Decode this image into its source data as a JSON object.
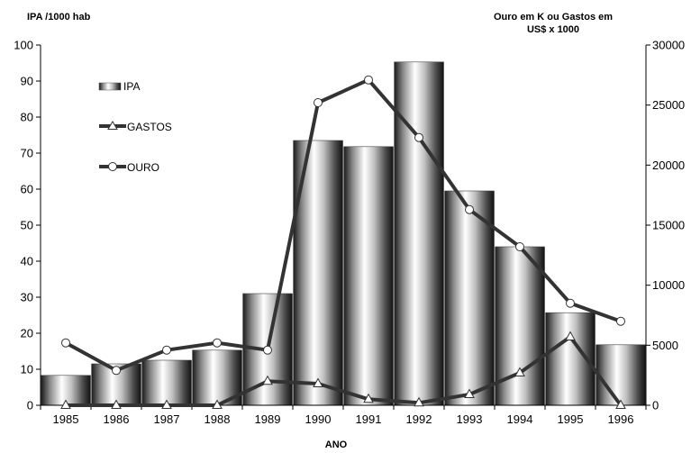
{
  "chart_data": {
    "type": "bar",
    "categories": [
      "1985",
      "1986",
      "1987",
      "1988",
      "1989",
      "1990",
      "1991",
      "1992",
      "1993",
      "1994",
      "1995",
      "1996"
    ],
    "xlabel": "ANO",
    "ylabel_left": "IPA /1000 hab",
    "ylabel_right": [
      "Ouro em K ou Gastos em",
      "US$ x 1000"
    ],
    "ylim_left": [
      0,
      100
    ],
    "ylim_right": [
      0,
      30000
    ],
    "yticks_left": [
      0,
      10,
      20,
      30,
      40,
      50,
      60,
      70,
      80,
      90,
      100
    ],
    "yticks_right": [
      0,
      5000,
      10000,
      15000,
      20000,
      25000,
      30000
    ],
    "grid": false,
    "legend_position": "top-left",
    "series": [
      {
        "name": "IPA",
        "type": "bar",
        "axis": "left",
        "values": [
          8.3,
          11.5,
          12.5,
          15.3,
          31,
          73.5,
          71.8,
          95.3,
          59.5,
          44,
          25.7,
          16.8
        ]
      },
      {
        "name": "GASTOS",
        "type": "line",
        "axis": "right",
        "marker": "triangle",
        "values": [
          0,
          0,
          0,
          0,
          2000,
          1800,
          500,
          200,
          900,
          2700,
          5700,
          0
        ]
      },
      {
        "name": "OURO",
        "type": "line",
        "axis": "right",
        "marker": "circle",
        "values": [
          5200,
          2900,
          4600,
          5200,
          4600,
          25200,
          27100,
          22300,
          16300,
          13200,
          8500,
          7000
        ]
      }
    ]
  }
}
